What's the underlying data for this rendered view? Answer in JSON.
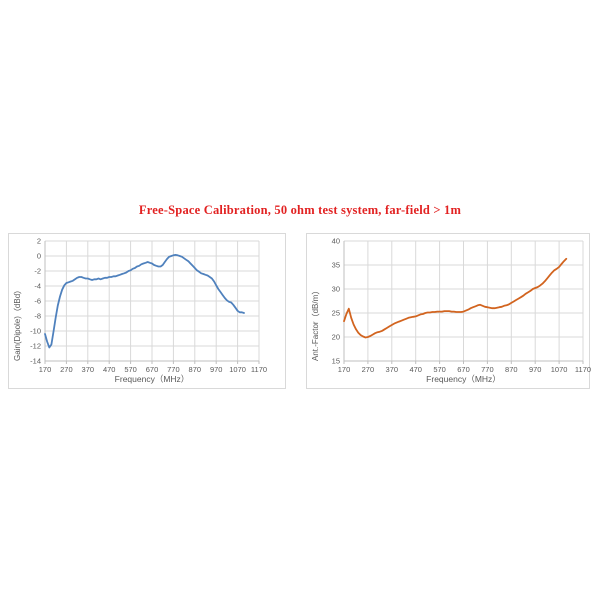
{
  "page": {
    "title": "Free-Space Calibration, 50 ohm  test system,  far-field > 1m",
    "title_color": "#e22222"
  },
  "theme": {
    "grid_color": "#d9d9d9",
    "axis_color": "#bfbfbf",
    "tick_text_color": "#595959",
    "background": "#ffffff"
  },
  "chart_data": [
    {
      "type": "line",
      "series_name": "gain",
      "xlabel": "Frequency（MHz）",
      "ylabel": "Gain(Dipole)（dBd）",
      "xlim": [
        170,
        1170
      ],
      "ylim": [
        -14,
        2
      ],
      "xticks": [
        170,
        270,
        370,
        470,
        570,
        670,
        770,
        870,
        970,
        1070,
        1170
      ],
      "yticks": [
        2,
        0,
        -2,
        -4,
        -6,
        -8,
        -10,
        -12,
        -14
      ],
      "line_color": "#4f81bd",
      "x": [
        170,
        180,
        190,
        200,
        210,
        220,
        230,
        240,
        250,
        260,
        270,
        280,
        290,
        300,
        310,
        320,
        330,
        340,
        350,
        360,
        370,
        380,
        390,
        400,
        410,
        420,
        430,
        440,
        450,
        460,
        470,
        480,
        490,
        500,
        510,
        520,
        530,
        540,
        550,
        560,
        570,
        580,
        590,
        600,
        610,
        620,
        630,
        640,
        650,
        660,
        670,
        680,
        690,
        700,
        710,
        720,
        730,
        740,
        750,
        760,
        770,
        780,
        790,
        800,
        810,
        820,
        830,
        840,
        850,
        860,
        870,
        880,
        890,
        900,
        910,
        920,
        930,
        940,
        950,
        960,
        970,
        980,
        990,
        1000,
        1010,
        1020,
        1030,
        1040,
        1050,
        1060,
        1070,
        1080,
        1090,
        1100
      ],
      "y": [
        -10.4,
        -11.4,
        -12.2,
        -11.8,
        -10.0,
        -8.2,
        -6.6,
        -5.4,
        -4.5,
        -3.9,
        -3.6,
        -3.5,
        -3.4,
        -3.3,
        -3.1,
        -2.9,
        -2.8,
        -2.8,
        -2.9,
        -3.0,
        -3.0,
        -3.1,
        -3.2,
        -3.1,
        -3.1,
        -3.0,
        -3.1,
        -3.0,
        -2.9,
        -2.9,
        -2.8,
        -2.8,
        -2.7,
        -2.7,
        -2.6,
        -2.5,
        -2.4,
        -2.3,
        -2.2,
        -2.0,
        -1.9,
        -1.7,
        -1.6,
        -1.4,
        -1.3,
        -1.1,
        -1.0,
        -0.9,
        -0.8,
        -0.9,
        -1.0,
        -1.2,
        -1.3,
        -1.4,
        -1.4,
        -1.2,
        -0.8,
        -0.4,
        -0.1,
        0.0,
        0.1,
        0.15,
        0.1,
        0.0,
        -0.1,
        -0.3,
        -0.5,
        -0.7,
        -1.0,
        -1.3,
        -1.6,
        -1.9,
        -2.1,
        -2.3,
        -2.4,
        -2.5,
        -2.6,
        -2.8,
        -3.0,
        -3.4,
        -3.9,
        -4.4,
        -4.8,
        -5.2,
        -5.6,
        -5.9,
        -6.1,
        -6.2,
        -6.5,
        -6.9,
        -7.3,
        -7.5,
        -7.5,
        -7.6
      ]
    },
    {
      "type": "line",
      "series_name": "antenna-factor",
      "xlabel": "Frequency（MHz）",
      "ylabel": "Ant.-Factor（dB/m）",
      "xlim": [
        170,
        1170
      ],
      "ylim": [
        15,
        40
      ],
      "xticks": [
        170,
        270,
        370,
        470,
        570,
        670,
        770,
        870,
        970,
        1070,
        1170
      ],
      "yticks": [
        40,
        35,
        30,
        25,
        20,
        15
      ],
      "line_color": "#d2641f",
      "x": [
        170,
        180,
        190,
        200,
        210,
        220,
        230,
        240,
        250,
        260,
        270,
        280,
        290,
        300,
        310,
        320,
        330,
        340,
        350,
        360,
        370,
        380,
        390,
        400,
        410,
        420,
        430,
        440,
        450,
        460,
        470,
        480,
        490,
        500,
        510,
        520,
        530,
        540,
        550,
        560,
        570,
        580,
        590,
        600,
        610,
        620,
        630,
        640,
        650,
        660,
        670,
        680,
        690,
        700,
        710,
        720,
        730,
        740,
        750,
        760,
        770,
        780,
        790,
        800,
        810,
        820,
        830,
        840,
        850,
        860,
        870,
        880,
        890,
        900,
        910,
        920,
        930,
        940,
        950,
        960,
        970,
        980,
        990,
        1000,
        1010,
        1020,
        1030,
        1040,
        1050,
        1060,
        1070,
        1080,
        1090,
        1100
      ],
      "y": [
        23.3,
        24.8,
        25.9,
        24.0,
        22.6,
        21.6,
        20.9,
        20.4,
        20.1,
        19.9,
        20.0,
        20.2,
        20.5,
        20.8,
        21.0,
        21.1,
        21.3,
        21.6,
        21.9,
        22.2,
        22.5,
        22.8,
        23.0,
        23.2,
        23.4,
        23.6,
        23.8,
        24.0,
        24.1,
        24.2,
        24.3,
        24.5,
        24.7,
        24.8,
        25.0,
        25.1,
        25.1,
        25.2,
        25.2,
        25.3,
        25.3,
        25.3,
        25.4,
        25.4,
        25.4,
        25.3,
        25.3,
        25.2,
        25.2,
        25.2,
        25.3,
        25.5,
        25.7,
        26.0,
        26.2,
        26.4,
        26.6,
        26.7,
        26.5,
        26.3,
        26.2,
        26.1,
        26.0,
        26.0,
        26.1,
        26.2,
        26.3,
        26.5,
        26.6,
        26.8,
        27.1,
        27.4,
        27.7,
        28.0,
        28.3,
        28.6,
        29.0,
        29.3,
        29.6,
        30.0,
        30.2,
        30.4,
        30.7,
        31.1,
        31.6,
        32.2,
        32.8,
        33.4,
        33.9,
        34.2,
        34.6,
        35.2,
        35.8,
        36.3
      ]
    }
  ]
}
